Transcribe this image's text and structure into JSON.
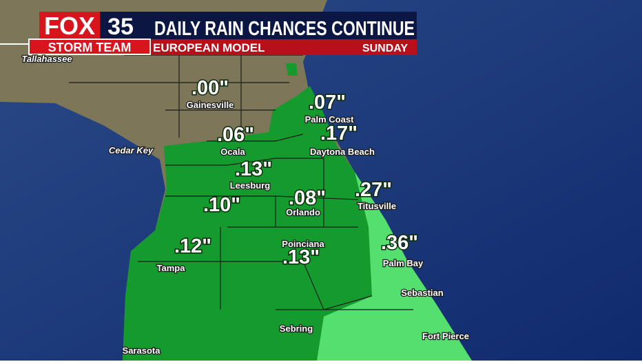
{
  "header": {
    "logo": "FOX",
    "logo_number": "35",
    "brand": "STORM TEAM",
    "title": "DAILY RAIN CHANCES CONTINUE",
    "model": "EUROPEAN MODEL",
    "day": "SUNDAY"
  },
  "cities": [
    "Tallahassee",
    "Gainesville",
    "Cedar Key",
    "Ocala",
    "Palm Coast",
    "Daytona Beach",
    "Leesburg",
    "Orlando",
    "Titusville",
    "Poinciana",
    "Palm Bay",
    "Tampa",
    "Sebastian",
    "Sebring",
    "Sarasota",
    "Fort Pierce"
  ],
  "rain_totals": [
    ".00\"",
    ".07\"",
    ".17\"",
    ".06\"",
    ".13\"",
    ".08\"",
    ".27\"",
    ".10\"",
    ".36\"",
    ".12\"",
    ".13\""
  ]
}
